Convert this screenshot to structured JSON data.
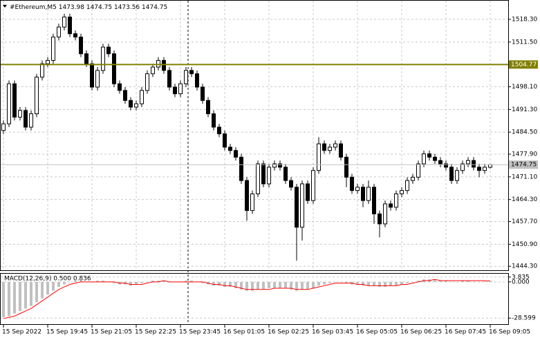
{
  "chart_data": [
    {
      "type": "candlestick",
      "title": "#Ethereum,M5",
      "categories": [
        "15 Sep 2022",
        null,
        null,
        null,
        null,
        null,
        null,
        null,
        "15 Sep 19:45",
        null,
        null,
        null,
        null,
        null,
        null,
        null,
        "15 Sep 21:05",
        null,
        null,
        null,
        null,
        null,
        null,
        null,
        "15 Sep 22:25",
        null,
        null,
        null,
        null,
        null,
        null,
        null,
        "15 Sep 23:45",
        null,
        null,
        null,
        null,
        null,
        null,
        null,
        "16 Sep 01:05",
        null,
        null,
        null,
        null,
        null,
        null,
        null,
        "16 Sep 02:25",
        null,
        null,
        null,
        null,
        null,
        null,
        null,
        "16 Sep 03:45",
        null,
        null,
        null,
        null,
        null,
        null,
        null,
        "16 Sep 05:05",
        null,
        null,
        null,
        null,
        null,
        null,
        null,
        "16 Sep 06:25",
        null,
        null,
        null,
        null,
        null,
        null,
        null,
        "16 Sep 07:45",
        null,
        null,
        null,
        null,
        null,
        null,
        null,
        "16 Sep 09:05"
      ],
      "open": [
        1485,
        1487,
        1499,
        1489,
        1491,
        1486,
        1490,
        1501,
        1505,
        1506,
        1513,
        1516,
        1519,
        1514,
        1513,
        1508,
        1505,
        1498,
        1503,
        1510,
        1508,
        1499,
        1497,
        1494,
        1492,
        1493,
        1497,
        1502,
        1504,
        1506,
        1503,
        1498,
        1496,
        1499,
        1503,
        1502,
        1498,
        1494,
        1490,
        1486,
        1484,
        1480,
        1479,
        1477,
        1470,
        1461,
        1466,
        1475,
        1469,
        1474,
        1475,
        1474,
        1470,
        1468,
        1456,
        1469,
        1464,
        1473,
        1481,
        1479,
        1480,
        1481,
        1477,
        1471,
        1467,
        1468,
        1464,
        1468,
        1460,
        1457,
        1463,
        1462,
        1466,
        1467,
        1470,
        1471,
        1475,
        1478,
        1477,
        1476,
        1475,
        1474,
        1470,
        1473,
        1475,
        1476,
        1474,
        1473,
        1473.98
      ],
      "high": [
        1488,
        1500,
        1500,
        1492,
        1492,
        1491,
        1502,
        1506,
        1507,
        1514,
        1517,
        1520,
        1520,
        1515,
        1514,
        1509,
        1506,
        1504,
        1511,
        1511,
        1509,
        1500,
        1498,
        1495,
        1494,
        1498,
        1503,
        1505,
        1507,
        1507,
        1504,
        1499,
        1500,
        1504,
        1504,
        1503,
        1499,
        1495,
        1491,
        1487,
        1485,
        1481,
        1480,
        1478,
        1471,
        1467,
        1476,
        1476,
        1475,
        1476,
        1476,
        1475,
        1471,
        1469,
        1470,
        1470,
        1474,
        1483,
        1482,
        1481,
        1482,
        1482,
        1478,
        1472,
        1469,
        1469,
        1470,
        1469,
        1461,
        1464,
        1464,
        1467,
        1468,
        1471,
        1472,
        1476,
        1479,
        1479,
        1478,
        1477,
        1476,
        1475,
        1474,
        1476,
        1477,
        1477,
        1475,
        1475,
        1474.75
      ],
      "low": [
        1484,
        1486,
        1488,
        1488,
        1485,
        1485,
        1489,
        1500,
        1504,
        1505,
        1512,
        1515,
        1513,
        1512,
        1507,
        1504,
        1497,
        1497,
        1502,
        1507,
        1498,
        1496,
        1493,
        1491,
        1491,
        1492,
        1496,
        1501,
        1503,
        1502,
        1497,
        1495,
        1495,
        1498,
        1501,
        1497,
        1493,
        1489,
        1485,
        1483,
        1479,
        1478,
        1476,
        1469,
        1458,
        1460,
        1465,
        1468,
        1468,
        1473,
        1473,
        1469,
        1467,
        1446,
        1452,
        1463,
        1463,
        1472,
        1478,
        1478,
        1479,
        1476,
        1468,
        1466,
        1466,
        1462,
        1463,
        1457,
        1453,
        1456,
        1461,
        1461,
        1465,
        1466,
        1469,
        1470,
        1474,
        1476,
        1475,
        1474,
        1473,
        1469,
        1469,
        1472,
        1474,
        1473,
        1471,
        1472,
        1473.56
      ],
      "close": [
        1487,
        1499,
        1489,
        1491,
        1486,
        1490,
        1501,
        1505,
        1506,
        1513,
        1516,
        1519,
        1514,
        1513,
        1508,
        1505,
        1498,
        1503,
        1510,
        1508,
        1499,
        1497,
        1494,
        1492,
        1493,
        1497,
        1502,
        1504,
        1506,
        1503,
        1498,
        1496,
        1499,
        1503,
        1502,
        1498,
        1494,
        1490,
        1486,
        1484,
        1480,
        1479,
        1477,
        1470,
        1461,
        1466,
        1475,
        1469,
        1474,
        1475,
        1474,
        1470,
        1468,
        1456,
        1469,
        1464,
        1473,
        1481,
        1479,
        1480,
        1481,
        1477,
        1471,
        1467,
        1468,
        1464,
        1468,
        1460,
        1457,
        1463,
        1462,
        1466,
        1467,
        1470,
        1471,
        1475,
        1478,
        1477,
        1476,
        1475,
        1474,
        1470,
        1473,
        1475,
        1476,
        1474,
        1473,
        1474,
        1474.75
      ],
      "up_color": "#ffffff",
      "down_color": "#000000",
      "ylim": [
        1443.1,
        1523.9
      ],
      "yticks": [
        {
          "value": 1518.3,
          "label": "1518.30"
        },
        {
          "value": 1511.5,
          "label": "1511.50"
        },
        {
          "value": 1498.1,
          "label": "1498.10"
        },
        {
          "value": 1491.3,
          "label": "1491.30"
        },
        {
          "value": 1484.5,
          "label": "1484.50"
        },
        {
          "value": 1477.9,
          "label": "1477.90"
        },
        {
          "value": 1471.1,
          "label": "1471.10"
        },
        {
          "value": 1464.3,
          "label": "1464.30"
        },
        {
          "value": 1457.7,
          "label": "1457.70"
        },
        {
          "value": 1450.9,
          "label": "1450.90"
        },
        {
          "value": 1444.3,
          "label": "1444.30"
        }
      ],
      "grid": true,
      "hline": 1504.77,
      "hline_color": "#808000"
    },
    {
      "type": "macd",
      "title": "MACD(12,26,9) 0.500 0.836",
      "series": [
        {
          "color": "#c0c0c0",
          "values": [
            -28,
            -27,
            -25,
            -23,
            -21,
            -19,
            -16,
            -13,
            -10,
            -7,
            -4,
            -2,
            0,
            1,
            1,
            0,
            0,
            1,
            1,
            0,
            -1,
            -2,
            -2,
            -3,
            -2,
            -1,
            0,
            1,
            1,
            1,
            0,
            0,
            0,
            1,
            1,
            0,
            -1,
            -2,
            -3,
            -3,
            -4,
            -4,
            -5,
            -6,
            -7,
            -7,
            -6,
            -6,
            -5,
            -5,
            -5,
            -5,
            -6,
            -7,
            -6,
            -6,
            -5,
            -3,
            -2,
            -1,
            0,
            0,
            -1,
            -2,
            -2,
            -3,
            -3,
            -3,
            -4,
            -4,
            -3,
            -3,
            -2,
            -1,
            0,
            1,
            2,
            2,
            2,
            1,
            1,
            0,
            0,
            1,
            1,
            0,
            0,
            0.3,
            0.5
          ]
        },
        {
          "color": "#ff0000",
          "values": [
            -29,
            -28,
            -27,
            -25,
            -23,
            -21,
            -18,
            -15,
            -12,
            -9,
            -6,
            -4,
            -2,
            -1,
            0,
            0,
            0,
            0,
            0,
            0,
            0,
            -1,
            -1,
            -2,
            -2,
            -2,
            -1,
            0,
            0,
            1,
            0,
            0,
            0,
            0,
            0,
            0,
            0,
            -1,
            -2,
            -2,
            -3,
            -3,
            -4,
            -5,
            -6,
            -6,
            -6,
            -6,
            -6,
            -5,
            -5,
            -5,
            -5,
            -6,
            -6,
            -6,
            -5,
            -4,
            -3,
            -2,
            -1,
            -1,
            -1,
            -1,
            -2,
            -2,
            -3,
            -3,
            -3,
            -3,
            -3,
            -3,
            -2,
            -2,
            -1,
            0,
            1,
            1,
            2,
            1,
            1,
            1,
            1,
            1,
            1,
            1,
            1,
            0.9,
            0.836
          ]
        }
      ],
      "ylim": [
        -33.4,
        7.0
      ],
      "yticks": [
        3.835,
        {
          "value": 0,
          "label": "0.000"
        },
        -28.599
      ]
    }
  ]
}
